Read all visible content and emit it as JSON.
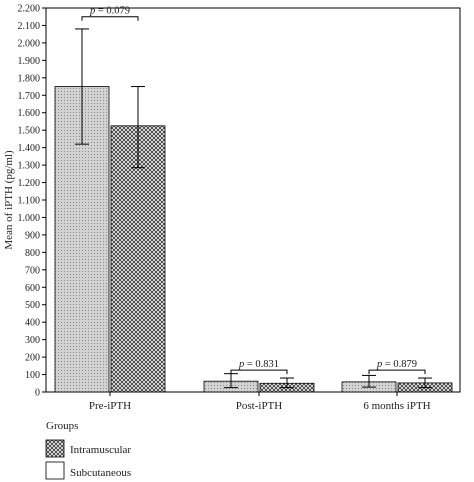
{
  "chart_data": {
    "type": "bar",
    "title": "",
    "xlabel": "",
    "ylabel": "Mean of iPTH (pg/ml)",
    "ylim": [
      0,
      2200
    ],
    "yticks": [
      0,
      100,
      200,
      300,
      400,
      500,
      600,
      700,
      800,
      900,
      1000,
      1100,
      1200,
      1300,
      1400,
      1500,
      1600,
      1700,
      1800,
      1900,
      2000,
      2100,
      2200
    ],
    "ytick_labels": [
      "0",
      "100",
      "200",
      "300",
      "400",
      "500",
      "600",
      "700",
      "800",
      "900",
      "1.000",
      "1.100",
      "1.200",
      "1.300",
      "1.400",
      "1.500",
      "1.600",
      "1.700",
      "1.800",
      "1.900",
      "2.000",
      "2.100",
      "2.200"
    ],
    "categories": [
      "Pre-iPTH",
      "Post-iPTH",
      "6 months iPTH"
    ],
    "series": [
      {
        "name": "Intramuscular",
        "values": [
          1750,
          62,
          58
        ],
        "error_low": [
          1420,
          25,
          28
        ],
        "error_high": [
          2080,
          105,
          95
        ]
      },
      {
        "name": "Subcutaneous",
        "values": [
          1525,
          50,
          52
        ],
        "error_low": [
          1285,
          25,
          25
        ],
        "error_high": [
          1750,
          80,
          80
        ]
      }
    ],
    "annotations": [
      {
        "prefix": "p",
        "text": " = 0.079",
        "category": 0,
        "y": 2150
      },
      {
        "prefix": "p",
        "text": " = 0.831",
        "category": 1,
        "y": 125
      },
      {
        "prefix": "p",
        "text": " = 0.879",
        "category": 2,
        "y": 125
      }
    ],
    "legend": {
      "title": "Groups",
      "position": "bottom-left",
      "items": [
        "Intramuscular",
        "Subcutaneous"
      ]
    },
    "grid": false
  }
}
